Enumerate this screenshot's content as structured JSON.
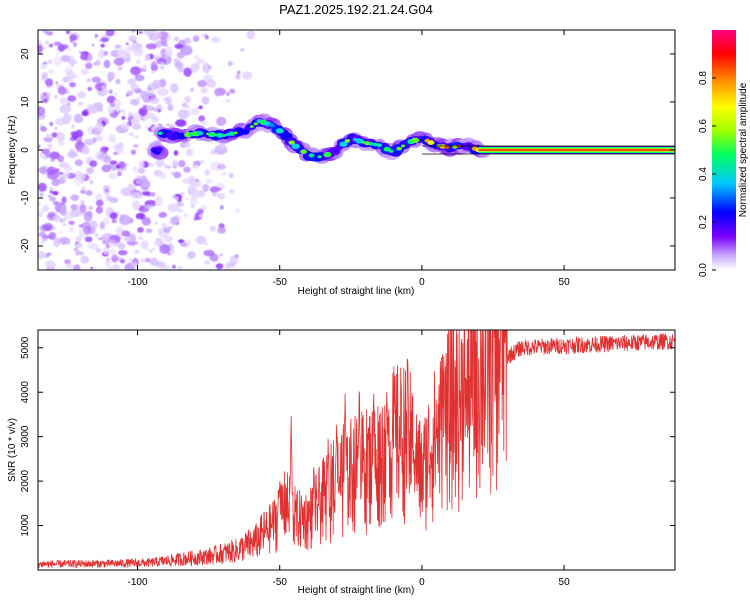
{
  "title": "PAZ1.2025.192.21.24.G04",
  "chart_data": [
    {
      "type": "heatmap",
      "xlabel": "Height of straight line (km)",
      "ylabel": "Frequency (Hz)",
      "xlim": [
        -135,
        89
      ],
      "ylim": [
        -25,
        25
      ],
      "xticks": [
        -100,
        -50,
        0,
        50
      ],
      "yticks": [
        -20,
        -10,
        0,
        10,
        20
      ],
      "colorbar": {
        "label": "Normalized spectral amplitude",
        "range": [
          0,
          1
        ],
        "ticks": [
          "0.0",
          "0.2",
          "0.4",
          "0.6",
          "0.8"
        ],
        "colormap": [
          "#ffffff",
          "#c9a8ff",
          "#7a00ff",
          "#0000ff",
          "#00c8ff",
          "#00ff60",
          "#a0ff00",
          "#ffff00",
          "#ff8000",
          "#ff0000",
          "#ff0080"
        ]
      },
      "signal_track": [
        {
          "x": -92,
          "f": 3.5
        },
        {
          "x": -85,
          "f": 3.0
        },
        {
          "x": -78,
          "f": 3.5
        },
        {
          "x": -70,
          "f": 3.0
        },
        {
          "x": -62,
          "f": 4.0
        },
        {
          "x": -57,
          "f": 6.0
        },
        {
          "x": -52,
          "f": 5.0
        },
        {
          "x": -48,
          "f": 3.0
        },
        {
          "x": -45,
          "f": 1.0
        },
        {
          "x": -40,
          "f": -1.0
        },
        {
          "x": -35,
          "f": -1.5
        },
        {
          "x": -30,
          "f": 0.0
        },
        {
          "x": -25,
          "f": 2.5
        },
        {
          "x": -20,
          "f": 1.5
        },
        {
          "x": -15,
          "f": 1.0
        },
        {
          "x": -10,
          "f": -0.5
        },
        {
          "x": -5,
          "f": 1.5
        },
        {
          "x": 0,
          "f": 2.5
        },
        {
          "x": 5,
          "f": 1.0
        },
        {
          "x": 10,
          "f": 0.5
        },
        {
          "x": 15,
          "f": 1.0
        },
        {
          "x": 20,
          "f": 0.0
        },
        {
          "x": 30,
          "f": 0.0
        },
        {
          "x": 60,
          "f": 0.0
        },
        {
          "x": 89,
          "f": 0.0
        }
      ]
    },
    {
      "type": "line",
      "xlabel": "Height of straight line (km)",
      "ylabel": "SNR (10 * v/v)",
      "xlim": [
        -135,
        89
      ],
      "ylim": [
        0,
        5400
      ],
      "xticks": [
        -100,
        -50,
        0,
        50
      ],
      "yticks": [
        1000,
        2000,
        3000,
        4000,
        5000
      ],
      "color": "#e03030",
      "envelope": [
        {
          "x": -135,
          "y": 120
        },
        {
          "x": -110,
          "y": 130
        },
        {
          "x": -95,
          "y": 150
        },
        {
          "x": -85,
          "y": 220
        },
        {
          "x": -75,
          "y": 280
        },
        {
          "x": -65,
          "y": 400
        },
        {
          "x": -58,
          "y": 600
        },
        {
          "x": -52,
          "y": 1000
        },
        {
          "x": -48,
          "y": 1400
        },
        {
          "x": -44,
          "y": 1100
        },
        {
          "x": -40,
          "y": 1100
        },
        {
          "x": -35,
          "y": 1500
        },
        {
          "x": -30,
          "y": 1900
        },
        {
          "x": -25,
          "y": 2100
        },
        {
          "x": -20,
          "y": 2200
        },
        {
          "x": -15,
          "y": 2400
        },
        {
          "x": -10,
          "y": 2800
        },
        {
          "x": -5,
          "y": 2900
        },
        {
          "x": -2,
          "y": 2300
        },
        {
          "x": 0,
          "y": 2000
        },
        {
          "x": 3,
          "y": 2600
        },
        {
          "x": 10,
          "y": 3400
        },
        {
          "x": 18,
          "y": 3900
        },
        {
          "x": 25,
          "y": 4400
        },
        {
          "x": 30,
          "y": 4800
        },
        {
          "x": 35,
          "y": 5000
        },
        {
          "x": 50,
          "y": 5050
        },
        {
          "x": 70,
          "y": 5100
        },
        {
          "x": 89,
          "y": 5150
        }
      ],
      "spikes": [
        {
          "x": -62,
          "y": 900
        },
        {
          "x": -50,
          "y": 2400
        },
        {
          "x": -46,
          "y": 3700
        },
        {
          "x": -38,
          "y": 2500
        },
        {
          "x": -33,
          "y": 3200
        },
        {
          "x": -30,
          "y": 4000
        },
        {
          "x": -27,
          "y": 4400
        },
        {
          "x": -22,
          "y": 4600
        },
        {
          "x": -17,
          "y": 4500
        },
        {
          "x": -12,
          "y": 3900
        },
        {
          "x": -5,
          "y": 3600
        },
        {
          "x": -3,
          "y": 3100
        },
        {
          "x": 8,
          "y": 4200
        },
        {
          "x": 15,
          "y": 4500
        }
      ]
    }
  ]
}
